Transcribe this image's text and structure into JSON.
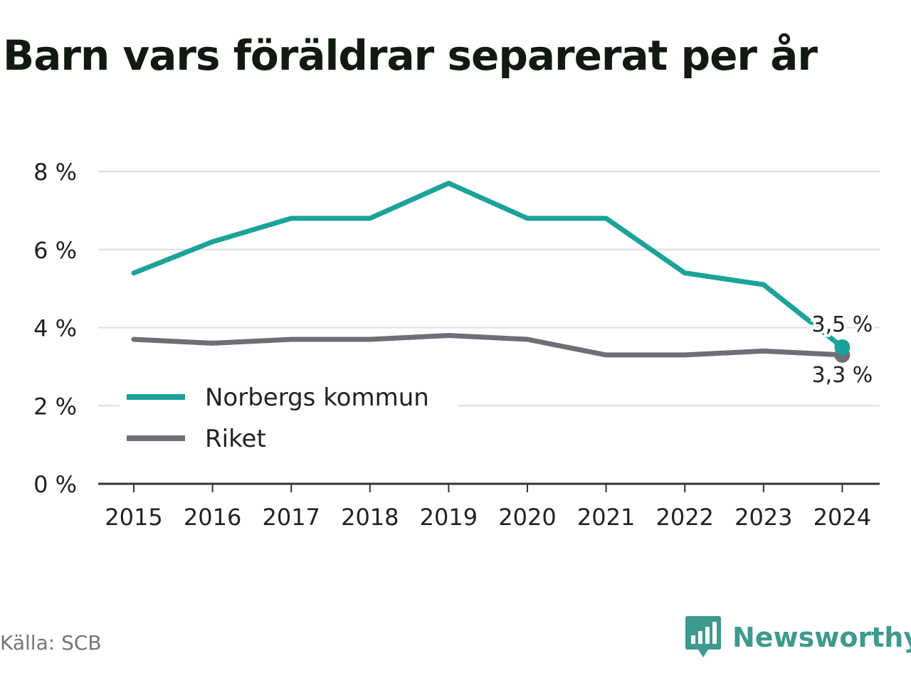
{
  "title": "Barn vars föräldrar separerat per år",
  "source": "Källa: SCB",
  "brand": {
    "name": "Newsworthy",
    "logo_icon": "bar-chart-speech-bubble-icon"
  },
  "colors": {
    "norberg": "#1aa39a",
    "riket": "#6e6e76",
    "grid": "#dddddd",
    "axis": "#333333",
    "text": "#222222",
    "brand": "#3d9a8e"
  },
  "chart_data": {
    "type": "line",
    "x": [
      "2015",
      "2016",
      "2017",
      "2018",
      "2019",
      "2020",
      "2021",
      "2022",
      "2023",
      "2024"
    ],
    "series": [
      {
        "name": "Norbergs kommun",
        "values": [
          5.4,
          6.2,
          6.8,
          6.8,
          7.7,
          6.8,
          6.8,
          5.4,
          5.1,
          3.5
        ],
        "color": "#1aa39a",
        "end_label": "3,5 %"
      },
      {
        "name": "Riket",
        "values": [
          3.7,
          3.6,
          3.7,
          3.7,
          3.8,
          3.7,
          3.3,
          3.3,
          3.4,
          3.3
        ],
        "color": "#6e6e76",
        "end_label": "3,3 %"
      }
    ],
    "ylim": [
      0,
      8
    ],
    "yticks": [
      0,
      2,
      4,
      6,
      8
    ],
    "ytick_labels": [
      "0 %",
      "2 %",
      "4 %",
      "6 %",
      "8 %"
    ],
    "grid": true,
    "legend_position": "bottom-left"
  }
}
